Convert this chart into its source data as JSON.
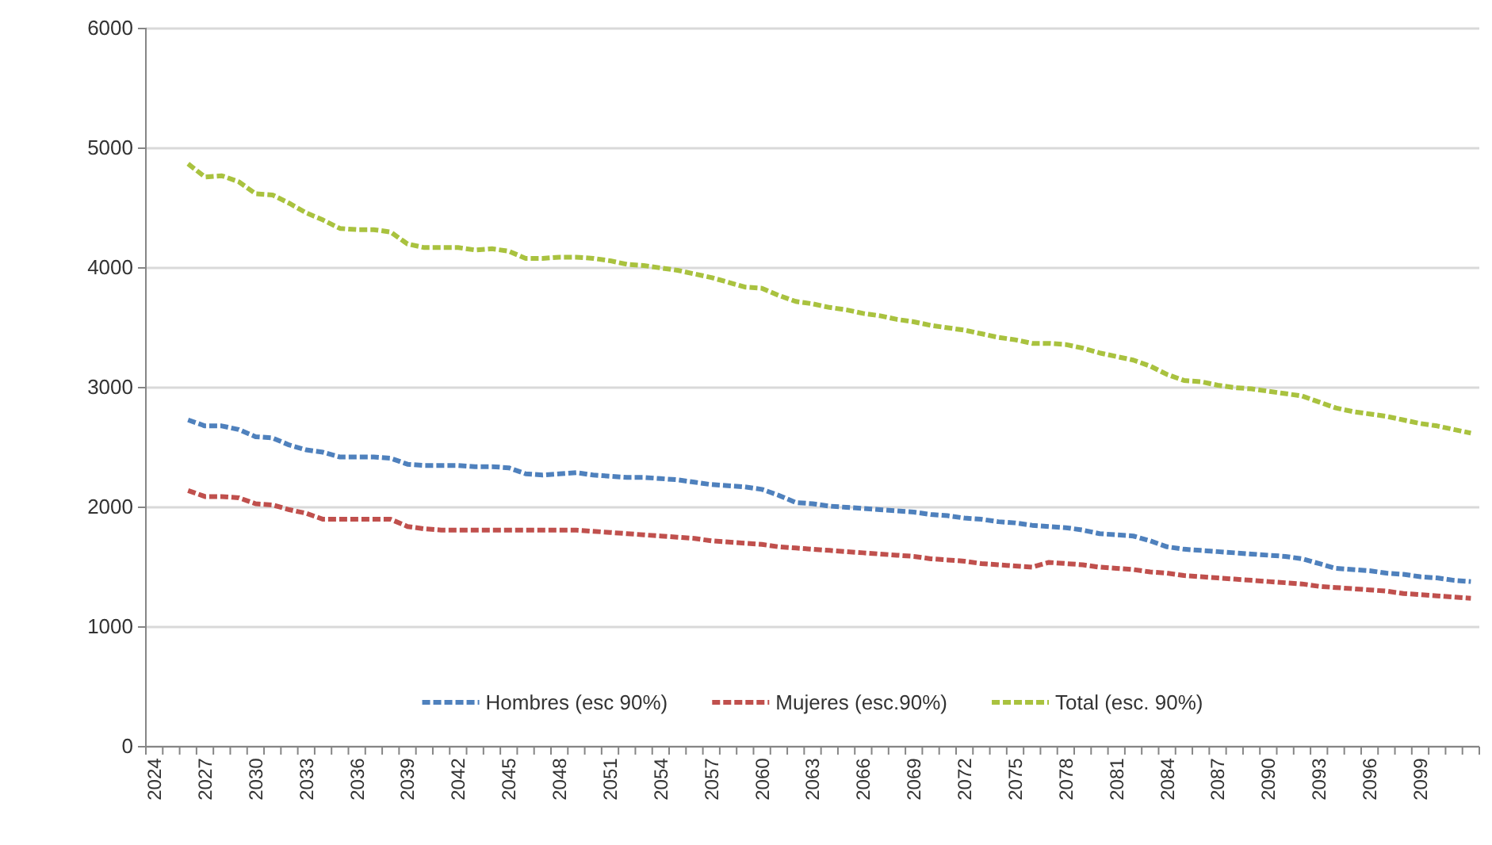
{
  "chart_data": {
    "type": "line",
    "categories": [
      "2024",
      null,
      null,
      "2027",
      null,
      null,
      "2030",
      null,
      null,
      "2033",
      null,
      null,
      "2036",
      null,
      null,
      "2039",
      null,
      null,
      "2042",
      null,
      null,
      "2045",
      null,
      null,
      "2048",
      null,
      null,
      "2051",
      null,
      null,
      "2054",
      null,
      null,
      "2057",
      null,
      null,
      "2060",
      null,
      null,
      "2063",
      null,
      null,
      "2066",
      null,
      null,
      "2069",
      null,
      null,
      "2072",
      null,
      null,
      "2075",
      null,
      null,
      "2078",
      null,
      null,
      "2081",
      null,
      null,
      "2084",
      null,
      null,
      "2087",
      null,
      null,
      "2090",
      null,
      null,
      "2093",
      null,
      null,
      "2096",
      null,
      null,
      "2099",
      null,
      null,
      null
    ],
    "series": [
      {
        "name": "Hombres (esc 90%)",
        "color": "#4f81bd",
        "values": [
          null,
          null,
          2730,
          2680,
          2680,
          2650,
          2590,
          2580,
          2520,
          2480,
          2460,
          2420,
          2420,
          2420,
          2410,
          2360,
          2350,
          2350,
          2350,
          2340,
          2340,
          2330,
          2280,
          2270,
          2280,
          2290,
          2270,
          2260,
          2250,
          2250,
          2240,
          2230,
          2210,
          2190,
          2180,
          2170,
          2150,
          2100,
          2040,
          2030,
          2010,
          2000,
          1990,
          1980,
          1970,
          1960,
          1940,
          1930,
          1910,
          1900,
          1880,
          1870,
          1850,
          1840,
          1830,
          1810,
          1780,
          1770,
          1760,
          1720,
          1670,
          1650,
          1640,
          1630,
          1620,
          1610,
          1600,
          1590,
          1570,
          1530,
          1490,
          1480,
          1470,
          1450,
          1440,
          1420,
          1410,
          1390,
          1380
        ]
      },
      {
        "name": "Mujeres (esc.90%)",
        "color": "#c0504d",
        "values": [
          null,
          null,
          2140,
          2090,
          2090,
          2080,
          2030,
          2020,
          1980,
          1950,
          1900,
          1900,
          1900,
          1900,
          1900,
          1840,
          1820,
          1810,
          1810,
          1810,
          1810,
          1810,
          1810,
          1810,
          1810,
          1810,
          1800,
          1790,
          1780,
          1770,
          1760,
          1750,
          1740,
          1720,
          1710,
          1700,
          1690,
          1670,
          1660,
          1650,
          1640,
          1630,
          1620,
          1610,
          1600,
          1590,
          1570,
          1560,
          1550,
          1530,
          1520,
          1510,
          1500,
          1540,
          1530,
          1520,
          1500,
          1490,
          1480,
          1460,
          1450,
          1430,
          1420,
          1410,
          1400,
          1390,
          1380,
          1370,
          1360,
          1340,
          1330,
          1320,
          1310,
          1300,
          1280,
          1270,
          1260,
          1250,
          1240
        ]
      },
      {
        "name": "Total (esc. 90%)",
        "color": "#a9c23f",
        "values": [
          null,
          null,
          4870,
          4760,
          4770,
          4720,
          4620,
          4610,
          4540,
          4460,
          4400,
          4330,
          4320,
          4320,
          4300,
          4200,
          4170,
          4170,
          4170,
          4150,
          4160,
          4140,
          4080,
          4080,
          4090,
          4090,
          4080,
          4060,
          4030,
          4020,
          4000,
          3980,
          3950,
          3920,
          3880,
          3840,
          3830,
          3770,
          3720,
          3700,
          3670,
          3650,
          3620,
          3600,
          3570,
          3550,
          3520,
          3500,
          3480,
          3450,
          3420,
          3400,
          3370,
          3370,
          3360,
          3330,
          3290,
          3260,
          3230,
          3180,
          3110,
          3060,
          3050,
          3020,
          3000,
          2990,
          2970,
          2950,
          2930,
          2880,
          2830,
          2800,
          2780,
          2760,
          2730,
          2700,
          2680,
          2650,
          2620
        ]
      }
    ],
    "ylim": [
      0,
      6000
    ],
    "yticks": [
      0,
      1000,
      2000,
      3000,
      4000,
      5000,
      6000
    ],
    "grid": "y",
    "legend": "bottom",
    "line_style": "dashed",
    "marker": "none"
  }
}
